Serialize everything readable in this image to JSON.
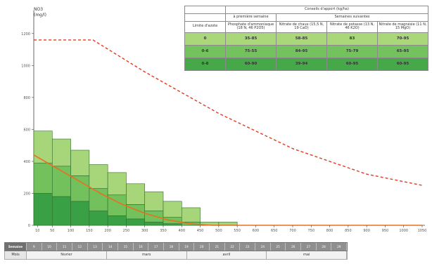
{
  "chart_data": {
    "type": "bar",
    "ylabel_lines": [
      "NO3",
      "(mg/l)"
    ],
    "yticks": [
      0,
      200,
      400,
      600,
      800,
      1000,
      1200
    ],
    "ylim": [
      0,
      1300
    ],
    "categories": [
      "10",
      "50",
      "100",
      "150",
      "200",
      "250",
      "300",
      "350",
      "400",
      "450",
      "500",
      "550",
      "600",
      "650",
      "700",
      "750",
      "800",
      "850",
      "900",
      "950",
      "1000",
      "1050"
    ],
    "x": [
      10,
      50,
      100,
      150,
      200,
      250,
      300,
      350,
      400,
      450,
      500,
      550,
      600,
      650,
      700,
      750,
      800,
      850,
      900,
      950,
      1000,
      1050
    ],
    "xlim": [
      0,
      1050
    ],
    "bar_width": 50,
    "bars": [
      {
        "x": 0,
        "values": [
          200,
          190,
          200
        ]
      },
      {
        "x": 50,
        "values": [
          180,
          190,
          170
        ]
      },
      {
        "x": 100,
        "values": [
          150,
          160,
          160
        ]
      },
      {
        "x": 150,
        "values": [
          90,
          140,
          150
        ]
      },
      {
        "x": 200,
        "values": [
          60,
          130,
          140
        ]
      },
      {
        "x": 250,
        "values": [
          40,
          90,
          130
        ]
      },
      {
        "x": 300,
        "values": [
          20,
          70,
          120
        ]
      },
      {
        "x": 350,
        "values": [
          10,
          40,
          100
        ]
      },
      {
        "x": 400,
        "values": [
          0,
          20,
          90
        ]
      },
      {
        "x": 450,
        "values": [
          0,
          0,
          20
        ]
      },
      {
        "x": 500,
        "values": [
          0,
          0,
          20
        ]
      }
    ],
    "bar_colors": [
      "#3aa046",
      "#72c15c",
      "#a7d67a"
    ],
    "series": [
      {
        "style": "dashed",
        "color": "#e23a22",
        "points": [
          [
            0,
            1160
          ],
          [
            160,
            1160
          ],
          [
            300,
            960
          ],
          [
            500,
            700
          ],
          [
            700,
            480
          ],
          [
            900,
            320
          ],
          [
            1050,
            250
          ]
        ]
      },
      {
        "style": "solid",
        "color": "#e8701f",
        "points": [
          [
            0,
            440
          ],
          [
            60,
            360
          ],
          [
            120,
            280
          ],
          [
            180,
            200
          ],
          [
            240,
            130
          ],
          [
            300,
            75
          ],
          [
            360,
            35
          ],
          [
            420,
            10
          ],
          [
            480,
            0
          ],
          [
            1050,
            0
          ]
        ]
      }
    ],
    "grid": false
  },
  "table": {
    "header_top": "Conseils d'apport (kg/ha)",
    "header_first": "à première semaine",
    "header_following": "Semaines suivantes",
    "column_headers": [
      "Limite d'azote",
      "Phosphate d'ammoniaque (18 N, 46 P2O5)",
      "Nitrate de chaux (15,5 N, 19 CaO)",
      "Nitrate de potasse (13 N, 46 K2O)",
      "Nitrate de magnésie (11 N, 15 MgO)"
    ],
    "rows": [
      [
        "0",
        "35-85",
        "58-85",
        "83",
        "70-95"
      ],
      [
        "0-6",
        "75-55",
        "84-95",
        "75-79",
        "65-95"
      ],
      [
        "0-8",
        "60-90",
        "39-94",
        "60-95",
        "60-95"
      ]
    ]
  },
  "bottom": {
    "weeks_label": "Semaine",
    "weeks": [
      "9",
      "10",
      "11",
      "12",
      "13",
      "14",
      "15",
      "16",
      "17",
      "18",
      "19",
      "20",
      "21",
      "22",
      "23",
      "24",
      "25",
      "26",
      "27",
      "28",
      "29"
    ],
    "month_label": "Mois",
    "months": [
      "février",
      "mars",
      "avril",
      "mai"
    ]
  }
}
